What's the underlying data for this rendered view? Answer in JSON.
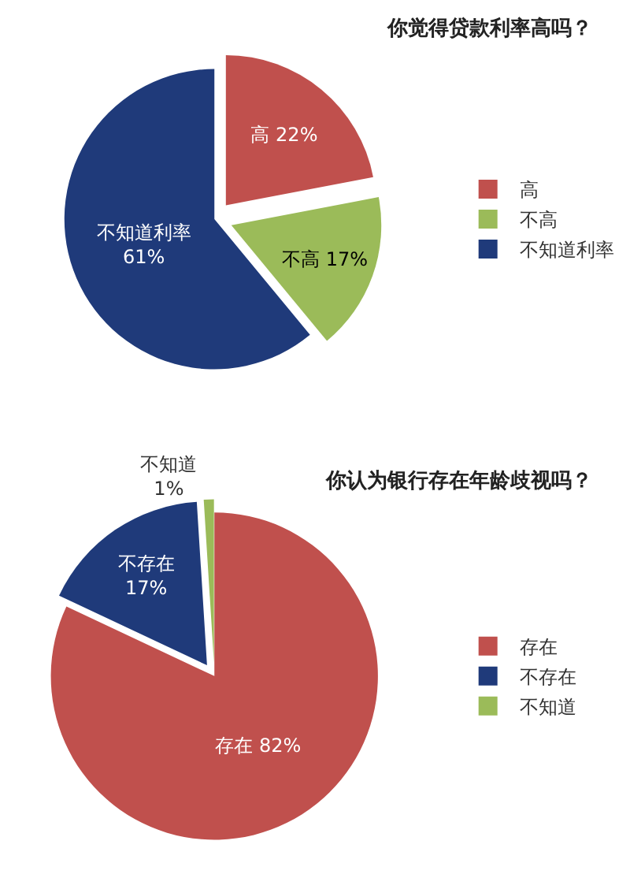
{
  "chart_data": [
    {
      "type": "pie",
      "title": "你觉得贷款利率高吗？",
      "categories": [
        "高",
        "不高",
        "不知道利率"
      ],
      "values": [
        22,
        17,
        61
      ],
      "colors": [
        "#c0504d",
        "#9bbb59",
        "#1f3a7a"
      ],
      "value_labels": [
        "高 22%",
        "不高 17%",
        "不知道利率 61%"
      ],
      "legend": "right"
    },
    {
      "type": "pie",
      "title": "你认为银行存在年龄歧视吗？",
      "categories": [
        "存在",
        "不存在",
        "不知道"
      ],
      "values": [
        82,
        17,
        1
      ],
      "colors": [
        "#c0504d",
        "#1f3a7a",
        "#9bbb59"
      ],
      "value_labels": [
        "存在 82%",
        "不存在 17%",
        "不知道 1%"
      ],
      "legend": "right"
    }
  ]
}
